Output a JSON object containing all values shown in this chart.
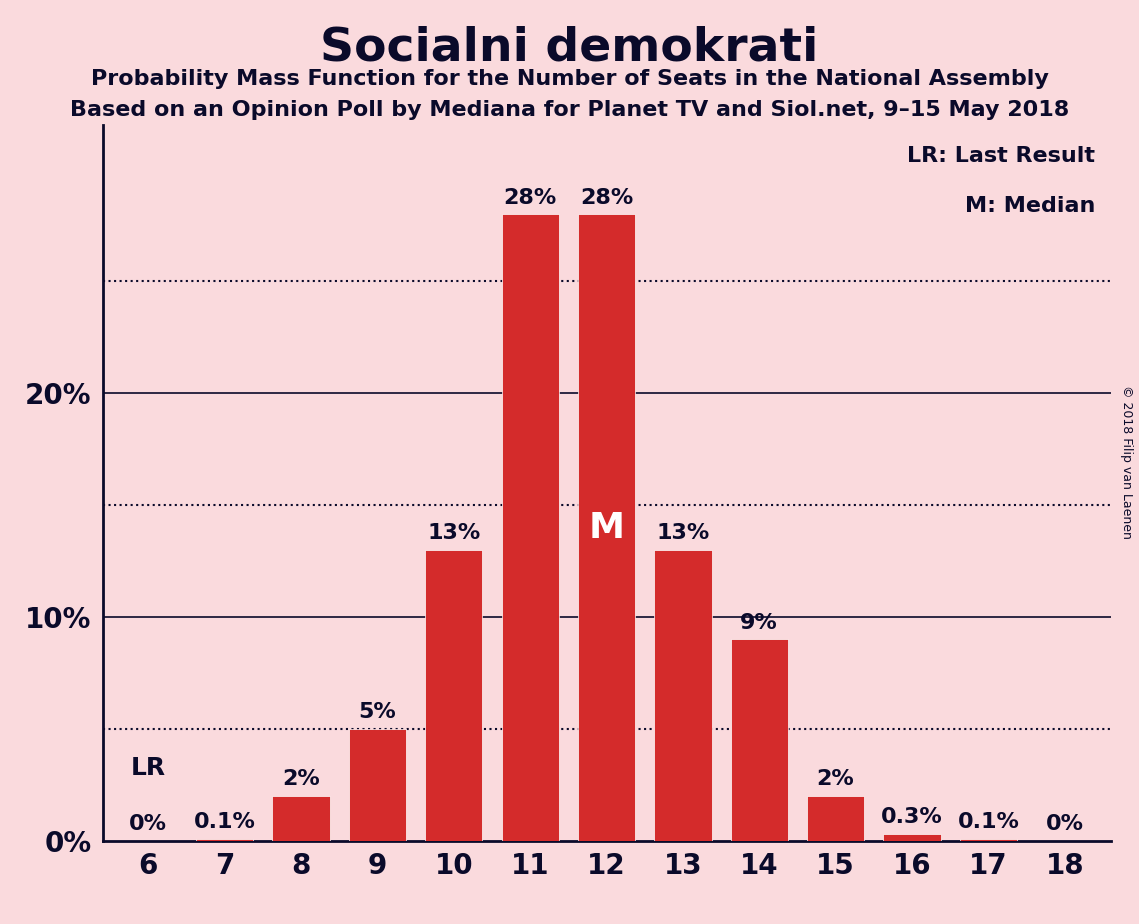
{
  "title": "Socialni demokrati",
  "subtitle1": "Probability Mass Function for the Number of Seats in the National Assembly",
  "subtitle2": "Based on an Opinion Poll by Mediana for Planet TV and Siol.net, 9–15 May 2018",
  "copyright": "© 2018 Filip van Laenen",
  "categories": [
    6,
    7,
    8,
    9,
    10,
    11,
    12,
    13,
    14,
    15,
    16,
    17,
    18
  ],
  "values": [
    0.0,
    0.1,
    2.0,
    5.0,
    13.0,
    28.0,
    28.0,
    13.0,
    9.0,
    2.0,
    0.3,
    0.1,
    0.0
  ],
  "bar_color": "#d42b2b",
  "background_color": "#fadadd",
  "text_color": "#0a0a2a",
  "bar_labels": [
    "0%",
    "0.1%",
    "2%",
    "5%",
    "13%",
    "28%",
    "28%",
    "13%",
    "9%",
    "2%",
    "0.3%",
    "0.1%",
    "0%"
  ],
  "yticks": [
    0,
    10,
    20
  ],
  "dotted_lines": [
    5,
    15,
    25
  ],
  "lr_seat": 6,
  "median_seat": 12,
  "ylim": [
    0,
    32
  ],
  "legend_lr": "LR: Last Result",
  "legend_m": "M: Median",
  "title_fontsize": 34,
  "subtitle_fontsize": 16,
  "bar_label_fontsize": 16,
  "ytick_fontsize": 20,
  "xtick_fontsize": 20,
  "legend_fontsize": 16
}
